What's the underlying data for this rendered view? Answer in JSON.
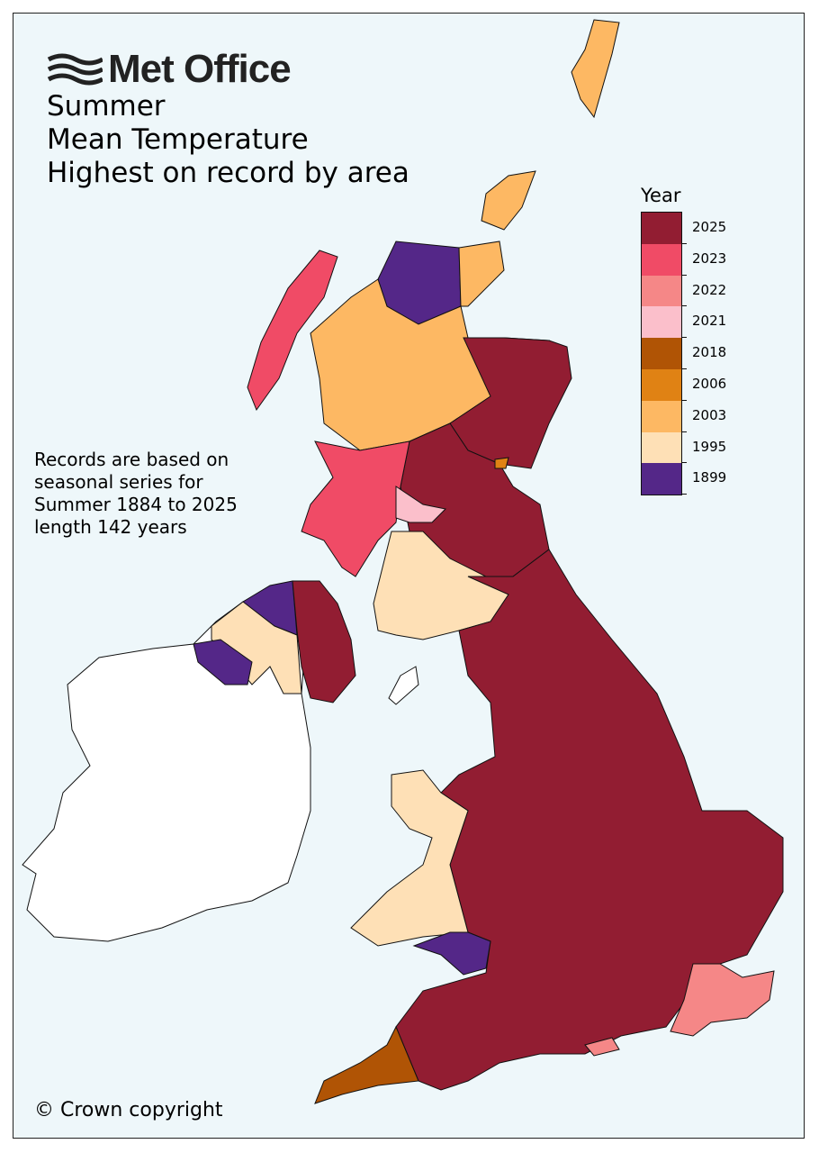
{
  "logo": {
    "text": "Met Office"
  },
  "title": {
    "line1": "Summer",
    "line2": "Mean Temperature",
    "line3": "Highest on record by area"
  },
  "note": {
    "line1": "Records are based on",
    "line2": "seasonal series for",
    "line3": "Summer 1884 to 2025",
    "line4": "length 142 years"
  },
  "copyright": "© Crown copyright",
  "legend": {
    "title": "Year",
    "items": [
      {
        "year": "2025",
        "color": "#921d32"
      },
      {
        "year": "2023",
        "color": "#f04b66"
      },
      {
        "year": "2022",
        "color": "#f58787"
      },
      {
        "year": "2021",
        "color": "#fbbfcb"
      },
      {
        "year": "2018",
        "color": "#b05405"
      },
      {
        "year": "2006",
        "color": "#e08214"
      },
      {
        "year": "2003",
        "color": "#fdb863"
      },
      {
        "year": "1995",
        "color": "#fee0b6"
      },
      {
        "year": "1899",
        "color": "#542788"
      }
    ]
  },
  "colors": {
    "background": "#eef7fa",
    "no_data": "#ffffff"
  }
}
